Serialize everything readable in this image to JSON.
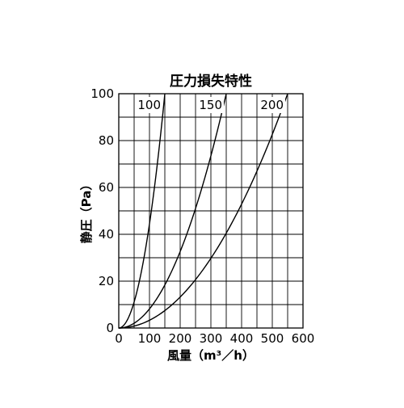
{
  "chart_data": {
    "type": "line",
    "title": "圧力損失特性",
    "xlabel": "風量（m³／h）",
    "ylabel": "静圧（Pa）",
    "xlim": [
      0,
      600
    ],
    "ylim": [
      0,
      100
    ],
    "x_ticks": [
      0,
      100,
      200,
      300,
      400,
      500,
      600
    ],
    "y_ticks": [
      0,
      20,
      40,
      60,
      80,
      100
    ],
    "grid": true,
    "legend": "none",
    "series": [
      {
        "name": "100",
        "curve_label": "100",
        "exponent": 2.0,
        "points": [
          [
            0,
            0
          ],
          [
            20,
            1.8
          ],
          [
            40,
            7
          ],
          [
            60,
            16
          ],
          [
            80,
            28.5
          ],
          [
            100,
            44
          ],
          [
            120,
            64
          ],
          [
            137,
            84
          ],
          [
            150,
            100
          ]
        ]
      },
      {
        "name": "150",
        "curve_label": "150",
        "exponent": 2.0,
        "points": [
          [
            0,
            0
          ],
          [
            50,
            2
          ],
          [
            100,
            8
          ],
          [
            150,
            18.5
          ],
          [
            200,
            33
          ],
          [
            250,
            51
          ],
          [
            300,
            74
          ],
          [
            350,
            100
          ]
        ]
      },
      {
        "name": "200",
        "curve_label": "200",
        "exponent": 2.0,
        "points": [
          [
            0,
            0
          ],
          [
            100,
            3.3
          ],
          [
            200,
            13.5
          ],
          [
            300,
            30
          ],
          [
            400,
            53.5
          ],
          [
            500,
            83
          ],
          [
            550,
            100
          ]
        ]
      }
    ]
  }
}
